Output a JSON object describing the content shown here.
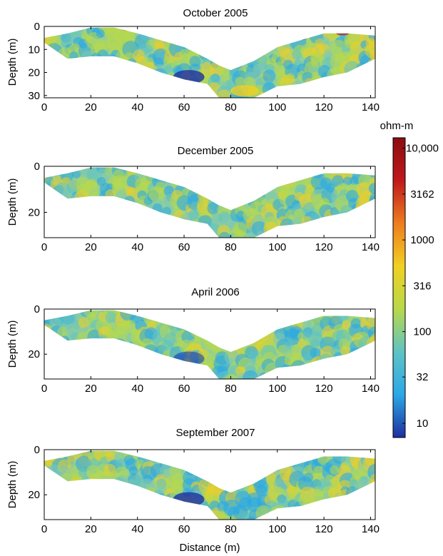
{
  "chart_data": [
    {
      "type": "heatmap",
      "title": "October 2005",
      "xlabel": "",
      "ylabel": "Depth (m)",
      "xlim": [
        0,
        142
      ],
      "ylim": [
        0,
        31
      ],
      "x_ticks": [
        "0",
        "20",
        "40",
        "60",
        "80",
        "100",
        "120",
        "140"
      ],
      "y_ticks": [
        "0",
        "10",
        "20",
        "30"
      ],
      "profile": {
        "x": [
          0,
          10,
          20,
          30,
          40,
          50,
          60,
          70,
          75,
          80,
          90,
          100,
          110,
          120,
          130,
          142
        ],
        "top_depth": [
          5,
          3,
          0.5,
          0.5,
          3,
          6,
          9,
          14,
          17,
          19,
          15,
          9,
          6,
          3,
          3,
          4
        ],
        "bottom_depth": [
          7,
          14,
          13,
          13,
          16,
          20,
          23,
          25,
          31,
          31,
          31,
          26,
          25,
          22,
          20,
          14
        ]
      }
    },
    {
      "type": "heatmap",
      "title": "December 2005",
      "xlabel": "",
      "ylabel": "Depth (m)",
      "xlim": [
        0,
        142
      ],
      "ylim": [
        0,
        31
      ],
      "x_ticks": [
        "0",
        "20",
        "40",
        "60",
        "80",
        "100",
        "120",
        "140"
      ],
      "y_ticks": [
        "0",
        "20"
      ],
      "profile": {
        "x": [
          0,
          10,
          20,
          30,
          40,
          50,
          60,
          70,
          75,
          80,
          90,
          100,
          110,
          120,
          130,
          142
        ],
        "top_depth": [
          5,
          3,
          0.5,
          0.5,
          3,
          6,
          9,
          14,
          17,
          19,
          15,
          9,
          6,
          3,
          3,
          4
        ],
        "bottom_depth": [
          7,
          14,
          13,
          13,
          16,
          20,
          23,
          25,
          31,
          31,
          31,
          26,
          25,
          22,
          20,
          14
        ]
      }
    },
    {
      "type": "heatmap",
      "title": "April 2006",
      "xlabel": "",
      "ylabel": "Depth (m)",
      "xlim": [
        0,
        142
      ],
      "ylim": [
        0,
        31
      ],
      "x_ticks": [
        "0",
        "20",
        "40",
        "60",
        "80",
        "100",
        "120",
        "140"
      ],
      "y_ticks": [
        "0",
        "20"
      ],
      "profile": {
        "x": [
          0,
          10,
          20,
          30,
          40,
          50,
          60,
          70,
          75,
          80,
          90,
          100,
          110,
          120,
          130,
          142
        ],
        "top_depth": [
          5,
          3,
          0.5,
          0.5,
          3,
          6,
          9,
          14,
          17,
          19,
          15,
          9,
          6,
          3,
          3,
          4
        ],
        "bottom_depth": [
          7,
          14,
          13,
          13,
          16,
          20,
          23,
          25,
          31,
          31,
          31,
          26,
          25,
          22,
          20,
          14
        ]
      }
    },
    {
      "type": "heatmap",
      "title": "September 2007",
      "xlabel": "Distance (m)",
      "ylabel": "Depth (m)",
      "xlim": [
        0,
        142
      ],
      "ylim": [
        0,
        31
      ],
      "x_ticks": [
        "0",
        "20",
        "40",
        "60",
        "80",
        "100",
        "120",
        "140"
      ],
      "y_ticks": [
        "0",
        "20"
      ],
      "profile": {
        "x": [
          0,
          10,
          20,
          30,
          40,
          50,
          60,
          70,
          75,
          80,
          90,
          100,
          110,
          120,
          130,
          142
        ],
        "top_depth": [
          5,
          3,
          0.5,
          0.5,
          3,
          6,
          9,
          14,
          17,
          19,
          15,
          9,
          6,
          3,
          3,
          4
        ],
        "bottom_depth": [
          7,
          14,
          13,
          13,
          16,
          20,
          23,
          25,
          31,
          31,
          31,
          26,
          25,
          22,
          20,
          14
        ]
      }
    }
  ],
  "colorbar": {
    "unit_label": "ohm-m",
    "scale": "log",
    "range": [
      7,
      13000
    ],
    "ticks": [
      {
        "value": 10000,
        "label": "10,000"
      },
      {
        "value": 3162,
        "label": "3162"
      },
      {
        "value": 1000,
        "label": "1000"
      },
      {
        "value": 316,
        "label": "316"
      },
      {
        "value": 100,
        "label": "100"
      },
      {
        "value": 32,
        "label": "32"
      },
      {
        "value": 10,
        "label": "10"
      }
    ],
    "colors": [
      "#1f2fa0",
      "#2aa8e6",
      "#5fc3c4",
      "#b8d84a",
      "#f1d021",
      "#ee7d1f",
      "#c0181c",
      "#8a0d12"
    ]
  }
}
